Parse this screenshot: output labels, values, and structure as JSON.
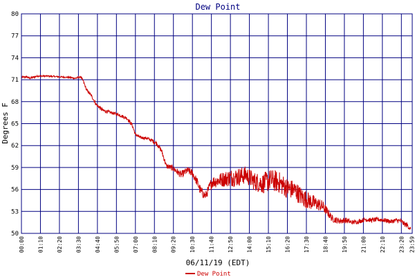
{
  "chart_data": {
    "type": "line",
    "title": "Dew Point",
    "xlabel": "06/11/19 (EDT)",
    "ylabel": "Degrees F",
    "ylim": [
      50,
      80
    ],
    "yticks": [
      "80",
      "77",
      "74",
      "71",
      "68",
      "65",
      "62",
      "59",
      "56",
      "53",
      "50"
    ],
    "xticks": [
      "00:00",
      "01:10",
      "02:20",
      "03:30",
      "04:40",
      "05:50",
      "07:00",
      "08:10",
      "09:20",
      "10:30",
      "11:40",
      "12:50",
      "14:00",
      "15:10",
      "16:20",
      "17:30",
      "18:40",
      "19:50",
      "21:00",
      "22:10",
      "23:20",
      "23:59"
    ],
    "xlim_hours": [
      0,
      24
    ],
    "grid": true,
    "legend": "bottom-center",
    "line_color": "#cc0000",
    "grid_color": "#000080",
    "series": [
      {
        "name": "Dew Point",
        "x": [
          0,
          0.3,
          0.5,
          1.0,
          1.6,
          2.3,
          3.0,
          3.3,
          3.65,
          3.8,
          4.0,
          4.3,
          4.6,
          5.0,
          5.5,
          6.0,
          6.5,
          6.8,
          7.0,
          7.3,
          7.7,
          8.0,
          8.3,
          8.6,
          8.9,
          9.3,
          9.8,
          10.2,
          10.5,
          10.8,
          11.0,
          11.3,
          11.7,
          12.2,
          12.8,
          13.3,
          13.8,
          14.3,
          14.8,
          15.3,
          15.8,
          16.3,
          16.8,
          17.2,
          17.6,
          17.9,
          18.2,
          18.5,
          18.8,
          19.1,
          19.5,
          19.9,
          20.3,
          20.7,
          21.1,
          21.5,
          21.9,
          22.3,
          22.7,
          23.0,
          23.3,
          23.5,
          23.7,
          23.9
        ],
        "y": [
          71.3,
          71.4,
          71.2,
          71.5,
          71.5,
          71.4,
          71.3,
          71.2,
          71.4,
          70.8,
          69.6,
          68.8,
          67.6,
          66.8,
          66.5,
          66.2,
          65.7,
          64.8,
          63.5,
          63.1,
          63.0,
          62.7,
          62.3,
          61.3,
          59.2,
          58.9,
          58.0,
          58.6,
          58.2,
          57.0,
          55.8,
          55.1,
          57.0,
          57.3,
          57.6,
          57.7,
          58.0,
          57.1,
          56.8,
          57.3,
          57.0,
          56.2,
          55.9,
          55.0,
          54.5,
          54.2,
          54.0,
          53.7,
          52.9,
          52.0,
          51.7,
          51.8,
          51.5,
          51.6,
          51.9,
          51.8,
          51.9,
          51.8,
          51.6,
          51.8,
          51.7,
          51.3,
          51.1,
          50.6
        ],
        "noise_band": [
          0.15,
          0.15,
          0.15,
          0.1,
          0.1,
          0.1,
          0.1,
          0.15,
          0.1,
          0.15,
          0.2,
          0.2,
          0.25,
          0.25,
          0.2,
          0.2,
          0.25,
          0.25,
          0.2,
          0.2,
          0.2,
          0.25,
          0.3,
          0.35,
          0.35,
          0.4,
          0.5,
          0.5,
          0.55,
          0.6,
          0.7,
          0.6,
          0.8,
          1.0,
          1.2,
          1.3,
          1.2,
          1.3,
          1.4,
          1.5,
          1.5,
          1.4,
          1.3,
          1.3,
          1.2,
          1.1,
          0.9,
          0.8,
          0.6,
          0.5,
          0.4,
          0.4,
          0.3,
          0.3,
          0.3,
          0.3,
          0.3,
          0.3,
          0.3,
          0.3,
          0.3,
          0.35,
          0.4,
          0.3
        ]
      }
    ]
  }
}
